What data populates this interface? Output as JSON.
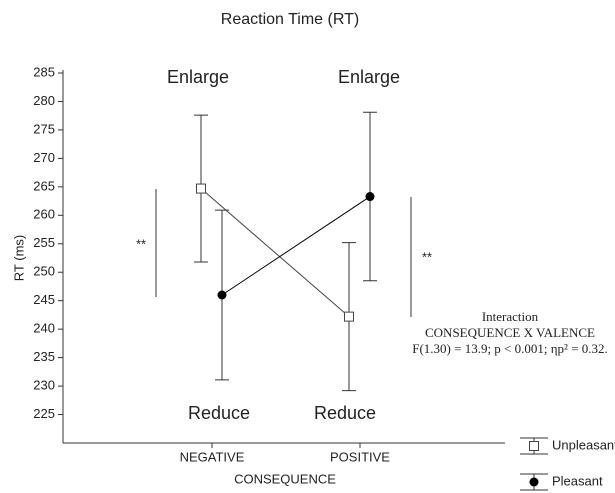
{
  "chart_data": {
    "type": "line",
    "title": "Reaction Time (RT)",
    "y_label": "RT (ms)",
    "x_label": "CONSEQUENCE",
    "categories": [
      "NEGATIVE",
      "POSITIVE"
    ],
    "series": [
      {
        "name": "Unpleasant",
        "color": "#444444",
        "marker": "square",
        "values": [
          264.7,
          242.2
        ],
        "errors": [
          12.9,
          13.0
        ]
      },
      {
        "name": "Pleasant",
        "color": "#000000",
        "marker": "circle",
        "values": [
          246.0,
          263.3
        ],
        "errors": [
          14.9,
          14.8
        ]
      }
    ],
    "ylim": [
      220,
      285
    ],
    "yticks": [
      225,
      230,
      235,
      240,
      245,
      250,
      255,
      260,
      265,
      270,
      275,
      280,
      285
    ],
    "annotations": [
      "Enlarge",
      "Enlarge",
      "Reduce",
      "Reduce",
      "**",
      "**"
    ],
    "interaction": [
      "Interaction",
      "CONSEQUENCE X VALENCE",
      "F(1.30) = 13.9; p < 0.001; ηp² = 0.32."
    ]
  }
}
